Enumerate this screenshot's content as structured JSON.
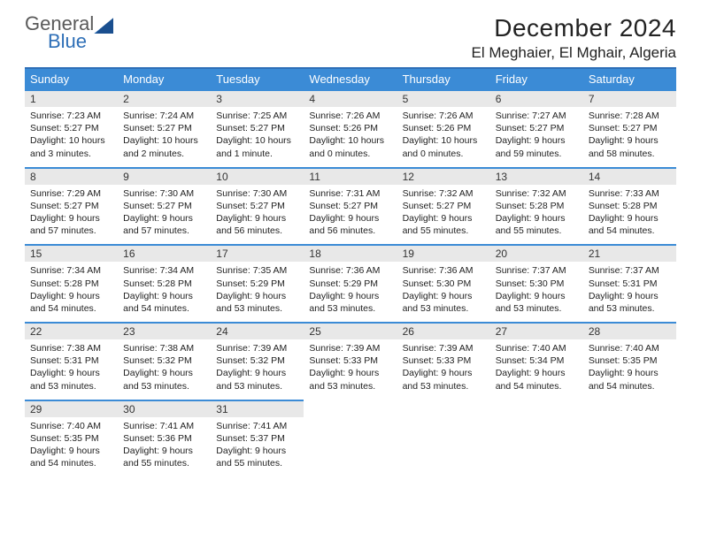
{
  "brand": {
    "line1": "General",
    "line2": "Blue",
    "color_primary": "#2e6fb7",
    "color_text": "#5a5a5a"
  },
  "header": {
    "month_title": "December 2024",
    "location": "El Meghaier, El Mghair, Algeria"
  },
  "colors": {
    "header_bg": "#3b8bd6",
    "header_border": "#2e6fb7",
    "daynum_bg": "#e8e8e8",
    "page_bg": "#ffffff"
  },
  "calendar": {
    "weekdays": [
      "Sunday",
      "Monday",
      "Tuesday",
      "Wednesday",
      "Thursday",
      "Friday",
      "Saturday"
    ],
    "weeks": [
      [
        {
          "day": "1",
          "sunrise": "Sunrise: 7:23 AM",
          "sunset": "Sunset: 5:27 PM",
          "daylight": "Daylight: 10 hours and 3 minutes."
        },
        {
          "day": "2",
          "sunrise": "Sunrise: 7:24 AM",
          "sunset": "Sunset: 5:27 PM",
          "daylight": "Daylight: 10 hours and 2 minutes."
        },
        {
          "day": "3",
          "sunrise": "Sunrise: 7:25 AM",
          "sunset": "Sunset: 5:27 PM",
          "daylight": "Daylight: 10 hours and 1 minute."
        },
        {
          "day": "4",
          "sunrise": "Sunrise: 7:26 AM",
          "sunset": "Sunset: 5:26 PM",
          "daylight": "Daylight: 10 hours and 0 minutes."
        },
        {
          "day": "5",
          "sunrise": "Sunrise: 7:26 AM",
          "sunset": "Sunset: 5:26 PM",
          "daylight": "Daylight: 10 hours and 0 minutes."
        },
        {
          "day": "6",
          "sunrise": "Sunrise: 7:27 AM",
          "sunset": "Sunset: 5:27 PM",
          "daylight": "Daylight: 9 hours and 59 minutes."
        },
        {
          "day": "7",
          "sunrise": "Sunrise: 7:28 AM",
          "sunset": "Sunset: 5:27 PM",
          "daylight": "Daylight: 9 hours and 58 minutes."
        }
      ],
      [
        {
          "day": "8",
          "sunrise": "Sunrise: 7:29 AM",
          "sunset": "Sunset: 5:27 PM",
          "daylight": "Daylight: 9 hours and 57 minutes."
        },
        {
          "day": "9",
          "sunrise": "Sunrise: 7:30 AM",
          "sunset": "Sunset: 5:27 PM",
          "daylight": "Daylight: 9 hours and 57 minutes."
        },
        {
          "day": "10",
          "sunrise": "Sunrise: 7:30 AM",
          "sunset": "Sunset: 5:27 PM",
          "daylight": "Daylight: 9 hours and 56 minutes."
        },
        {
          "day": "11",
          "sunrise": "Sunrise: 7:31 AM",
          "sunset": "Sunset: 5:27 PM",
          "daylight": "Daylight: 9 hours and 56 minutes."
        },
        {
          "day": "12",
          "sunrise": "Sunrise: 7:32 AM",
          "sunset": "Sunset: 5:27 PM",
          "daylight": "Daylight: 9 hours and 55 minutes."
        },
        {
          "day": "13",
          "sunrise": "Sunrise: 7:32 AM",
          "sunset": "Sunset: 5:28 PM",
          "daylight": "Daylight: 9 hours and 55 minutes."
        },
        {
          "day": "14",
          "sunrise": "Sunrise: 7:33 AM",
          "sunset": "Sunset: 5:28 PM",
          "daylight": "Daylight: 9 hours and 54 minutes."
        }
      ],
      [
        {
          "day": "15",
          "sunrise": "Sunrise: 7:34 AM",
          "sunset": "Sunset: 5:28 PM",
          "daylight": "Daylight: 9 hours and 54 minutes."
        },
        {
          "day": "16",
          "sunrise": "Sunrise: 7:34 AM",
          "sunset": "Sunset: 5:28 PM",
          "daylight": "Daylight: 9 hours and 54 minutes."
        },
        {
          "day": "17",
          "sunrise": "Sunrise: 7:35 AM",
          "sunset": "Sunset: 5:29 PM",
          "daylight": "Daylight: 9 hours and 53 minutes."
        },
        {
          "day": "18",
          "sunrise": "Sunrise: 7:36 AM",
          "sunset": "Sunset: 5:29 PM",
          "daylight": "Daylight: 9 hours and 53 minutes."
        },
        {
          "day": "19",
          "sunrise": "Sunrise: 7:36 AM",
          "sunset": "Sunset: 5:30 PM",
          "daylight": "Daylight: 9 hours and 53 minutes."
        },
        {
          "day": "20",
          "sunrise": "Sunrise: 7:37 AM",
          "sunset": "Sunset: 5:30 PM",
          "daylight": "Daylight: 9 hours and 53 minutes."
        },
        {
          "day": "21",
          "sunrise": "Sunrise: 7:37 AM",
          "sunset": "Sunset: 5:31 PM",
          "daylight": "Daylight: 9 hours and 53 minutes."
        }
      ],
      [
        {
          "day": "22",
          "sunrise": "Sunrise: 7:38 AM",
          "sunset": "Sunset: 5:31 PM",
          "daylight": "Daylight: 9 hours and 53 minutes."
        },
        {
          "day": "23",
          "sunrise": "Sunrise: 7:38 AM",
          "sunset": "Sunset: 5:32 PM",
          "daylight": "Daylight: 9 hours and 53 minutes."
        },
        {
          "day": "24",
          "sunrise": "Sunrise: 7:39 AM",
          "sunset": "Sunset: 5:32 PM",
          "daylight": "Daylight: 9 hours and 53 minutes."
        },
        {
          "day": "25",
          "sunrise": "Sunrise: 7:39 AM",
          "sunset": "Sunset: 5:33 PM",
          "daylight": "Daylight: 9 hours and 53 minutes."
        },
        {
          "day": "26",
          "sunrise": "Sunrise: 7:39 AM",
          "sunset": "Sunset: 5:33 PM",
          "daylight": "Daylight: 9 hours and 53 minutes."
        },
        {
          "day": "27",
          "sunrise": "Sunrise: 7:40 AM",
          "sunset": "Sunset: 5:34 PM",
          "daylight": "Daylight: 9 hours and 54 minutes."
        },
        {
          "day": "28",
          "sunrise": "Sunrise: 7:40 AM",
          "sunset": "Sunset: 5:35 PM",
          "daylight": "Daylight: 9 hours and 54 minutes."
        }
      ],
      [
        {
          "day": "29",
          "sunrise": "Sunrise: 7:40 AM",
          "sunset": "Sunset: 5:35 PM",
          "daylight": "Daylight: 9 hours and 54 minutes."
        },
        {
          "day": "30",
          "sunrise": "Sunrise: 7:41 AM",
          "sunset": "Sunset: 5:36 PM",
          "daylight": "Daylight: 9 hours and 55 minutes."
        },
        {
          "day": "31",
          "sunrise": "Sunrise: 7:41 AM",
          "sunset": "Sunset: 5:37 PM",
          "daylight": "Daylight: 9 hours and 55 minutes."
        },
        null,
        null,
        null,
        null
      ]
    ]
  }
}
